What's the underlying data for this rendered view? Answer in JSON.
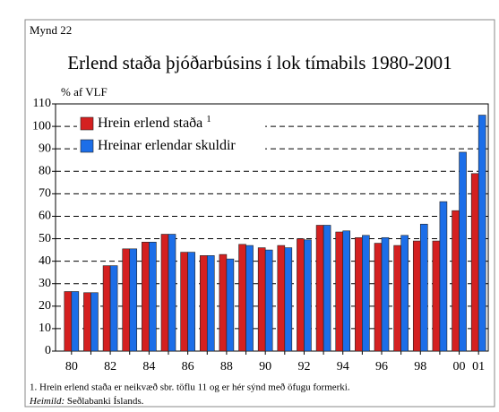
{
  "chart_data": {
    "type": "bar",
    "figure_label": "Mynd 22",
    "title": "Erlend staða þjóðarbúsins í lok tímabils 1980-2001",
    "y_axis_label": "% af VLF",
    "categories": [
      "80",
      null,
      "82",
      null,
      "84",
      null,
      "86",
      null,
      "88",
      null,
      "90",
      null,
      "92",
      null,
      "94",
      null,
      "96",
      null,
      "98",
      null,
      "00",
      "01"
    ],
    "series": [
      {
        "name": "Hrein erlend staða",
        "note_mark": "1",
        "color": "#d42020",
        "values": [
          26.5,
          26,
          38,
          45.5,
          48.5,
          52,
          44,
          42.5,
          43,
          47.5,
          46,
          47,
          50,
          56,
          53,
          50.5,
          48,
          47,
          49,
          49,
          62.5,
          79
        ]
      },
      {
        "name": "Hreinar erlendar skuldir",
        "color": "#1c6ee8",
        "values": [
          26.5,
          26,
          38,
          45.5,
          48.5,
          52,
          44,
          42.5,
          41,
          47,
          45,
          46,
          49.5,
          56,
          53.5,
          51.5,
          50.5,
          51.5,
          56.5,
          66.5,
          88.5,
          105
        ]
      }
    ],
    "ylim": [
      0,
      110
    ],
    "yticks": [
      0,
      10,
      20,
      30,
      40,
      50,
      60,
      70,
      80,
      90,
      100,
      110
    ],
    "grid": true,
    "legend": "upper left",
    "footnote": "1. Hrein erlend staða er neikvæð sbr. töflu 11 og er hér sýnd með öfugu formerki.",
    "source_label": "Heimild:",
    "source": "Seðlabanki Íslands."
  }
}
